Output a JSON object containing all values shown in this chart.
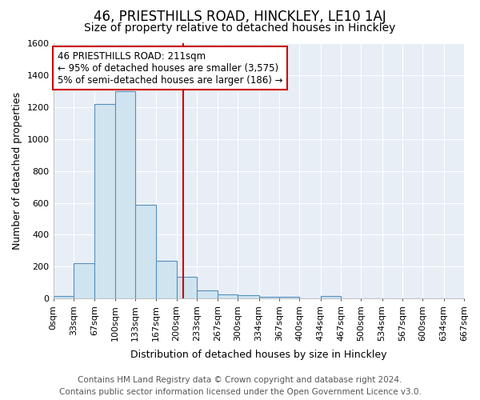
{
  "title": "46, PRIESTHILLS ROAD, HINCKLEY, LE10 1AJ",
  "subtitle": "Size of property relative to detached houses in Hinckley",
  "xlabel": "Distribution of detached houses by size in Hinckley",
  "ylabel": "Number of detached properties",
  "bar_edges": [
    0,
    33,
    67,
    100,
    133,
    167,
    200,
    233,
    267,
    300,
    334,
    367,
    400,
    434,
    467,
    500,
    534,
    567,
    600,
    634,
    667
  ],
  "bar_heights": [
    15,
    220,
    1220,
    1300,
    590,
    235,
    135,
    50,
    25,
    22,
    12,
    10,
    0,
    15,
    0,
    0,
    0,
    0,
    0,
    0
  ],
  "bar_color": "#d0e4f0",
  "bar_edge_color": "#5590c0",
  "property_line_x": 211,
  "property_line_color": "#cc0000",
  "annotation_text": "46 PRIESTHILLS ROAD: 211sqm\n← 95% of detached houses are smaller (3,575)\n5% of semi-detached houses are larger (186) →",
  "annotation_box_color": "#ffffff",
  "annotation_box_edge": "#cc0000",
  "ylim": [
    0,
    1600
  ],
  "yticks": [
    0,
    200,
    400,
    600,
    800,
    1000,
    1200,
    1400,
    1600
  ],
  "xtick_labels": [
    "0sqm",
    "33sqm",
    "67sqm",
    "100sqm",
    "133sqm",
    "167sqm",
    "200sqm",
    "233sqm",
    "267sqm",
    "300sqm",
    "334sqm",
    "367sqm",
    "400sqm",
    "434sqm",
    "467sqm",
    "500sqm",
    "534sqm",
    "567sqm",
    "600sqm",
    "634sqm",
    "667sqm"
  ],
  "footer_line1": "Contains HM Land Registry data © Crown copyright and database right 2024.",
  "footer_line2": "Contains public sector information licensed under the Open Government Licence v3.0.",
  "fig_background_color": "#ffffff",
  "plot_background_color": "#e8eef6",
  "grid_color": "#ffffff",
  "title_fontsize": 12,
  "subtitle_fontsize": 10,
  "axis_label_fontsize": 9,
  "tick_fontsize": 8,
  "footer_fontsize": 7.5,
  "annotation_fontsize": 8.5
}
